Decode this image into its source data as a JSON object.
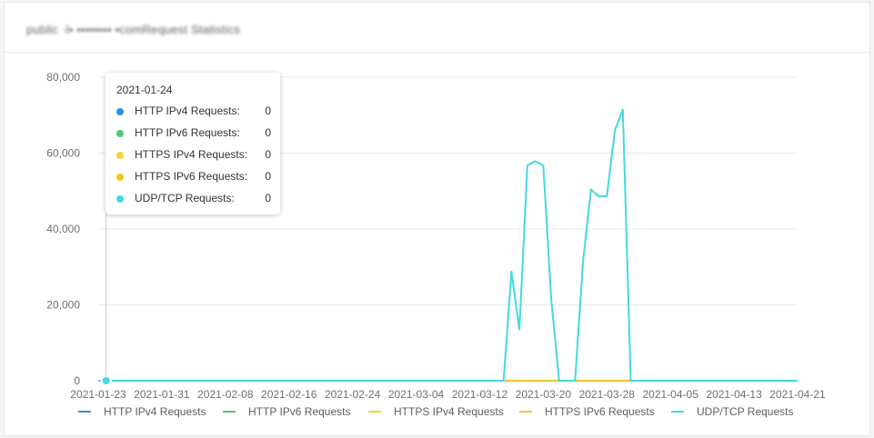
{
  "panel": {
    "title": "pu⁠bl⁠ic ·l▪ ▪▪▪▪▪▪▪▪ ▪comRequest Statistics"
  },
  "tooltip": {
    "date": "2021-01-24",
    "rows": [
      {
        "label": "HTTP IPv4 Requests:",
        "value": "0",
        "color": "#2f8fe8"
      },
      {
        "label": "HTTP IPv6 Requests:",
        "value": "0",
        "color": "#4ccb73"
      },
      {
        "label": "HTTPS IPv4 Requests:",
        "value": "0",
        "color": "#f7d13a"
      },
      {
        "label": "HTTPS IPv6 Requests:",
        "value": "0",
        "color": "#f2c623"
      },
      {
        "label": "UDP/TCP Requests:",
        "value": "0",
        "color": "#43d9e0"
      }
    ]
  },
  "chart_data": {
    "type": "line",
    "x_start": "2021-01-23",
    "x_end": "2021-04-21",
    "ylim": [
      0,
      80000
    ],
    "y_ticks": [
      0,
      20000,
      40000,
      60000,
      80000
    ],
    "y_tick_labels": [
      "0",
      "20,000",
      "40,000",
      "60,000",
      "80,000"
    ],
    "x_tick_labels": [
      "2021-01-23",
      "2021-01-31",
      "2021-02-08",
      "2021-02-16",
      "2021-02-24",
      "2021-03-04",
      "2021-03-12",
      "2021-03-20",
      "2021-03-28",
      "2021-04-05",
      "2021-04-13",
      "2021-04-21"
    ],
    "grid": true,
    "legend_position": "bottom",
    "series": [
      {
        "name": "HTTP IPv4 Requests",
        "color": "#2f8fe8",
        "points": [
          [
            "2021-01-23",
            0
          ],
          [
            "2021-04-21",
            0
          ]
        ]
      },
      {
        "name": "HTTP IPv6 Requests",
        "color": "#4ccb73",
        "points": [
          [
            "2021-01-23",
            0
          ],
          [
            "2021-04-21",
            0
          ]
        ]
      },
      {
        "name": "HTTPS IPv4 Requests",
        "color": "#f7d13a",
        "points": [
          [
            "2021-01-23",
            0
          ],
          [
            "2021-04-21",
            0
          ]
        ]
      },
      {
        "name": "HTTPS IPv6 Requests",
        "color": "#f2c623",
        "points": [
          [
            "2021-01-23",
            0
          ],
          [
            "2021-04-21",
            0
          ]
        ]
      },
      {
        "name": "UDP/TCP Requests",
        "color": "#43d9e0",
        "points": [
          [
            "2021-01-23",
            0
          ],
          [
            "2021-03-15",
            0
          ],
          [
            "2021-03-16",
            28800
          ],
          [
            "2021-03-17",
            13500
          ],
          [
            "2021-03-18",
            56800
          ],
          [
            "2021-03-19",
            57900
          ],
          [
            "2021-03-20",
            56700
          ],
          [
            "2021-03-21",
            21500
          ],
          [
            "2021-03-22",
            0
          ],
          [
            "2021-03-23",
            0
          ],
          [
            "2021-03-24",
            0
          ],
          [
            "2021-03-25",
            31500
          ],
          [
            "2021-03-26",
            50400
          ],
          [
            "2021-03-27",
            48600
          ],
          [
            "2021-03-28",
            48700
          ],
          [
            "2021-03-29",
            65900
          ],
          [
            "2021-03-30",
            71500
          ],
          [
            "2021-03-31",
            0
          ],
          [
            "2021-04-21",
            0
          ]
        ]
      }
    ],
    "cursor_date": "2021-01-24"
  }
}
